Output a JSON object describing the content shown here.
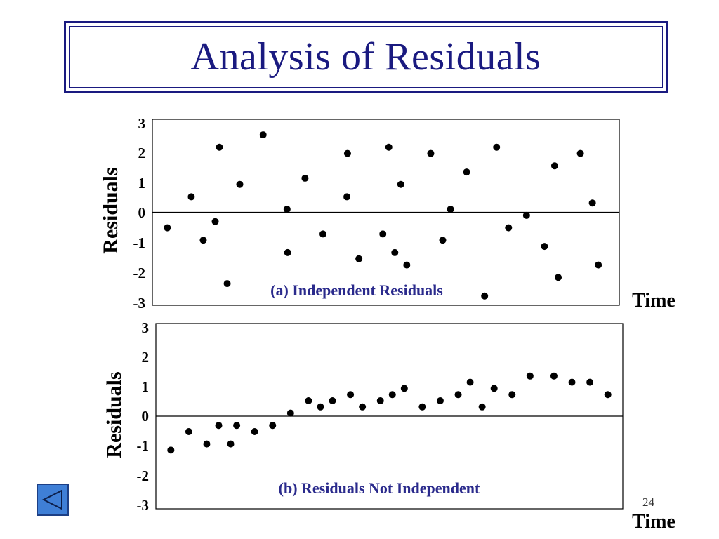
{
  "slide": {
    "title": "Analysis of Residuals",
    "page_number": "24"
  },
  "colors": {
    "title": "#1a1a80",
    "caption": "#2a2a8c",
    "nav_button_fill": "#3f7fd6",
    "nav_button_border": "#1d3f85"
  },
  "icons": {
    "nav_button": "back-arrow-icon"
  },
  "chart_data": [
    {
      "type": "scatter",
      "caption": "(a) Independent Residuals",
      "xlabel": "Time",
      "ylabel": "Residuals",
      "ylim": [
        -3,
        3
      ],
      "yticks": [
        "3",
        "2",
        "1",
        "0",
        "-1",
        "-2",
        "-3"
      ],
      "zero_line": true,
      "xlim": [
        0,
        78
      ],
      "points": [
        {
          "x": 2.5,
          "y": -0.5
        },
        {
          "x": 6.5,
          "y": 0.5
        },
        {
          "x": 8.5,
          "y": -0.9
        },
        {
          "x": 10.5,
          "y": -0.3
        },
        {
          "x": 11.2,
          "y": 2.1
        },
        {
          "x": 12.5,
          "y": -2.3
        },
        {
          "x": 14.6,
          "y": 0.9
        },
        {
          "x": 18.5,
          "y": 2.5
        },
        {
          "x": 22.5,
          "y": 0.1
        },
        {
          "x": 22.6,
          "y": -1.3
        },
        {
          "x": 25.5,
          "y": 1.1
        },
        {
          "x": 28.5,
          "y": -0.7
        },
        {
          "x": 32.5,
          "y": 0.5
        },
        {
          "x": 32.6,
          "y": 1.9
        },
        {
          "x": 34.5,
          "y": -1.5
        },
        {
          "x": 38.5,
          "y": -0.7
        },
        {
          "x": 39.5,
          "y": 2.1
        },
        {
          "x": 40.5,
          "y": -1.3
        },
        {
          "x": 41.5,
          "y": 0.9
        },
        {
          "x": 42.5,
          "y": -1.7
        },
        {
          "x": 46.5,
          "y": 1.9
        },
        {
          "x": 48.5,
          "y": -0.9
        },
        {
          "x": 49.8,
          "y": 0.1
        },
        {
          "x": 52.5,
          "y": 1.3
        },
        {
          "x": 55.5,
          "y": -2.7
        },
        {
          "x": 57.5,
          "y": 2.1
        },
        {
          "x": 59.5,
          "y": -0.5
        },
        {
          "x": 62.5,
          "y": -0.1
        },
        {
          "x": 65.5,
          "y": -1.1
        },
        {
          "x": 67.2,
          "y": 1.5
        },
        {
          "x": 67.8,
          "y": -2.1
        },
        {
          "x": 71.5,
          "y": 1.9
        },
        {
          "x": 73.5,
          "y": 0.3
        },
        {
          "x": 74.5,
          "y": -1.7
        }
      ]
    },
    {
      "type": "scatter",
      "caption": "(b) Residuals Not Independent",
      "xlabel": "Time",
      "ylabel": "Residuals",
      "ylim": [
        -3,
        3
      ],
      "yticks": [
        "3",
        "2",
        "1",
        "0",
        "-1",
        "-2",
        "-3"
      ],
      "zero_line": true,
      "xlim": [
        0,
        78
      ],
      "points": [
        {
          "x": 2.5,
          "y": -1.1
        },
        {
          "x": 5.5,
          "y": -0.5
        },
        {
          "x": 8.5,
          "y": -0.9
        },
        {
          "x": 10.5,
          "y": -0.3
        },
        {
          "x": 12.5,
          "y": -0.9
        },
        {
          "x": 13.5,
          "y": -0.3
        },
        {
          "x": 16.5,
          "y": -0.5
        },
        {
          "x": 19.5,
          "y": -0.3
        },
        {
          "x": 22.5,
          "y": 0.1
        },
        {
          "x": 25.5,
          "y": 0.5
        },
        {
          "x": 27.5,
          "y": 0.3
        },
        {
          "x": 29.5,
          "y": 0.5
        },
        {
          "x": 32.5,
          "y": 0.7
        },
        {
          "x": 34.5,
          "y": 0.3
        },
        {
          "x": 37.5,
          "y": 0.5
        },
        {
          "x": 39.5,
          "y": 0.7
        },
        {
          "x": 41.5,
          "y": 0.9
        },
        {
          "x": 44.5,
          "y": 0.3
        },
        {
          "x": 47.5,
          "y": 0.5
        },
        {
          "x": 50.5,
          "y": 0.7
        },
        {
          "x": 52.5,
          "y": 1.1
        },
        {
          "x": 54.5,
          "y": 0.3
        },
        {
          "x": 56.5,
          "y": 0.9
        },
        {
          "x": 59.5,
          "y": 0.7
        },
        {
          "x": 62.5,
          "y": 1.3
        },
        {
          "x": 66.5,
          "y": 1.3
        },
        {
          "x": 69.5,
          "y": 1.1
        },
        {
          "x": 72.5,
          "y": 1.1
        },
        {
          "x": 75.5,
          "y": 0.7
        }
      ]
    }
  ]
}
